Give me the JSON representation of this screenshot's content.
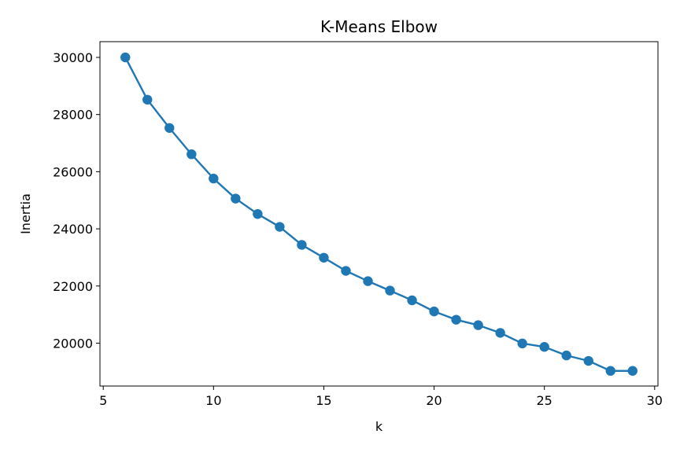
{
  "chart_data": {
    "type": "line",
    "title": "K-Means Elbow",
    "xlabel": "k",
    "ylabel": "Inertia",
    "xlim": [
      4.85,
      30.15
    ],
    "ylim": [
      18500,
      30550
    ],
    "xticks": [
      5,
      10,
      15,
      20,
      25,
      30
    ],
    "yticks": [
      20000,
      22000,
      24000,
      26000,
      28000,
      30000
    ],
    "grid": false,
    "legend": "none",
    "marker": "circle",
    "color": "#1f77b4",
    "series": [
      {
        "x": [
          6,
          7,
          8,
          9,
          10,
          11,
          12,
          13,
          14,
          15,
          16,
          17,
          18,
          19,
          20,
          21,
          22,
          23,
          24,
          25,
          26,
          27,
          28,
          29
        ],
        "y": [
          30000,
          28520,
          27530,
          26610,
          25760,
          25060,
          24520,
          24070,
          23440,
          22990,
          22530,
          22170,
          21840,
          21500,
          21110,
          20820,
          20630,
          20360,
          19990,
          19870,
          19570,
          19380,
          19030,
          19030
        ]
      }
    ]
  }
}
